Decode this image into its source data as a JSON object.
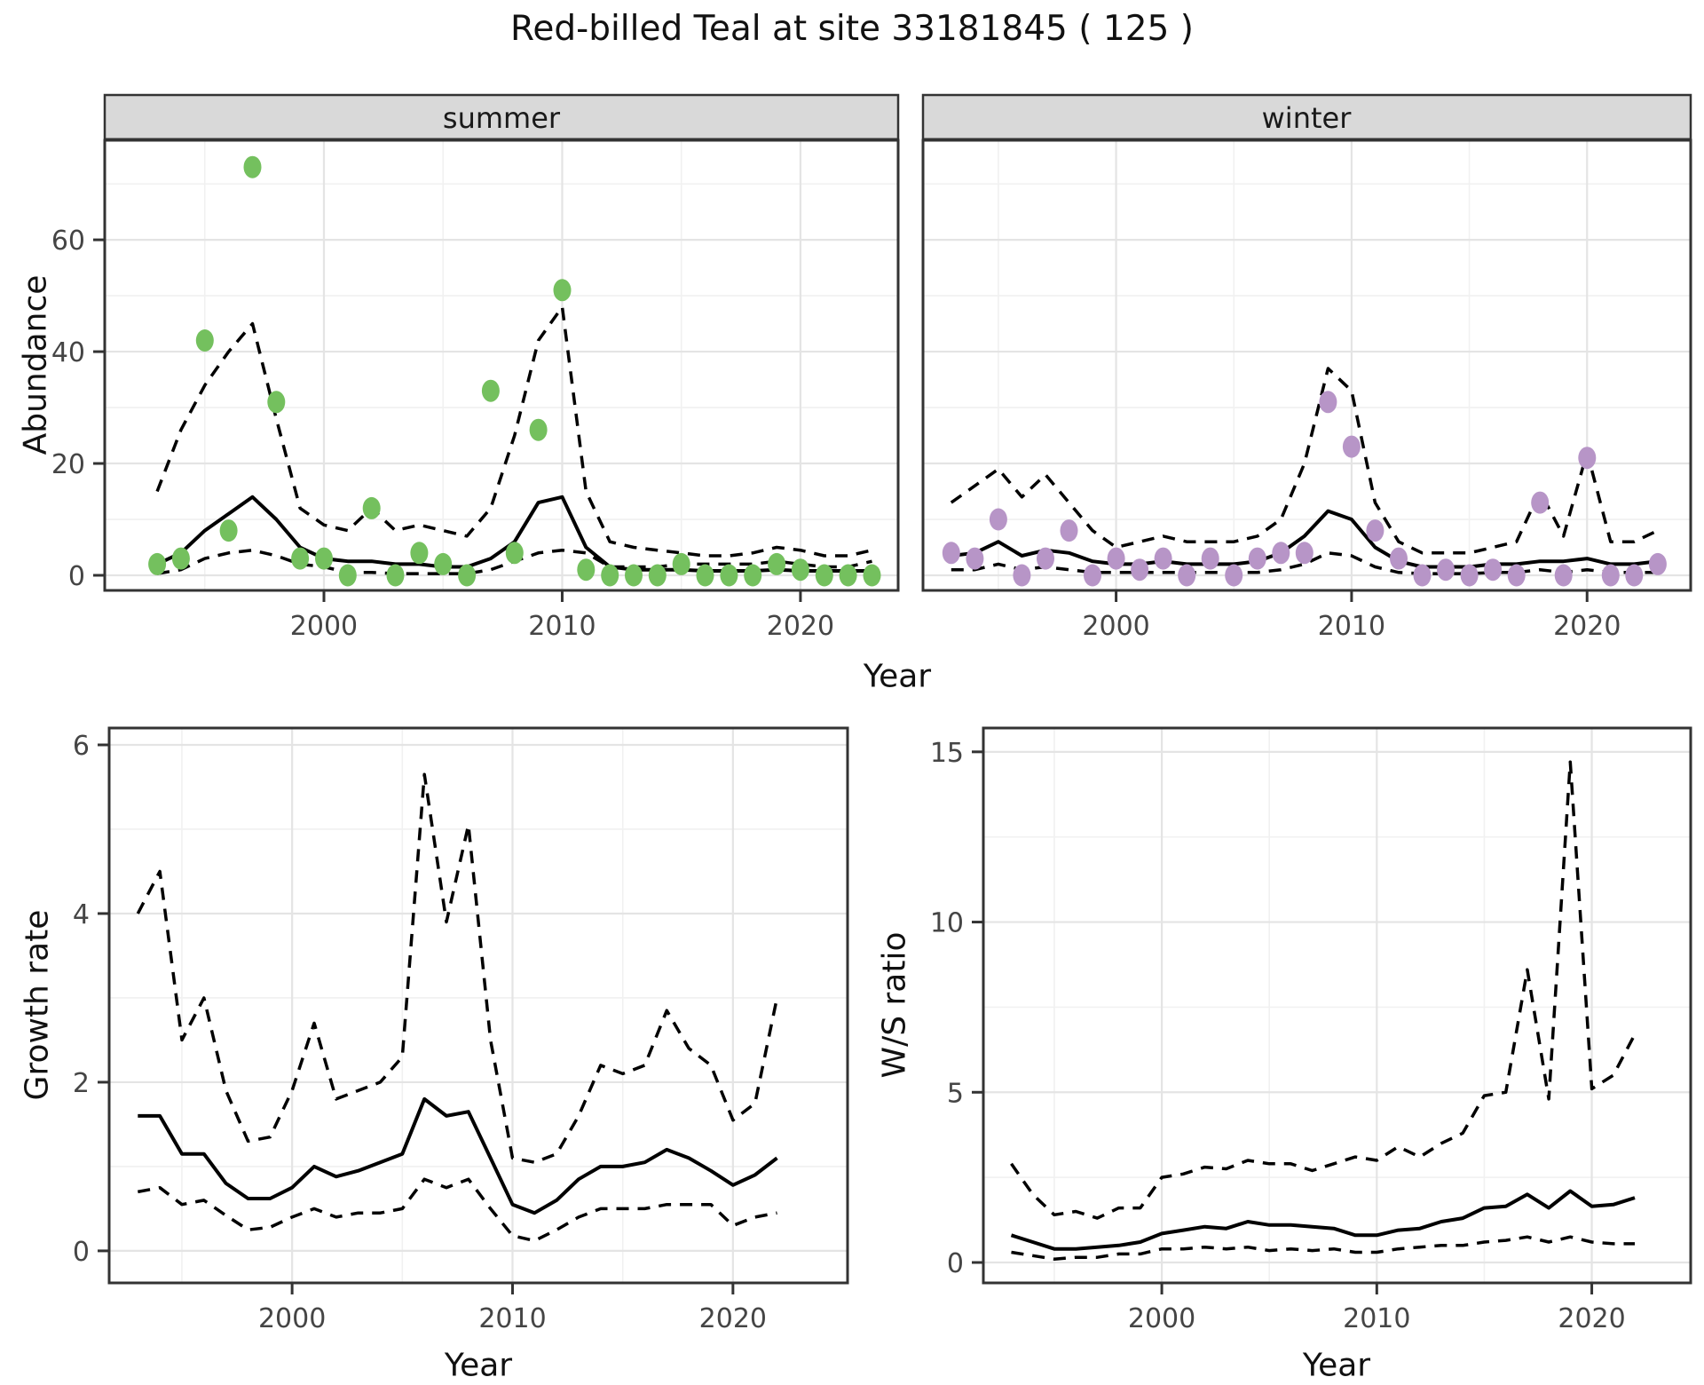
{
  "title": "Red-billed Teal at site 33181845 ( 125 )",
  "facets": {
    "summer": "summer",
    "winter": "winter"
  },
  "axes": {
    "abundance": "Abundance",
    "year": "Year",
    "growth_rate": "Growth rate",
    "ws_ratio": "W/S ratio"
  },
  "colors": {
    "summer_point": "#74c05e",
    "winter_point": "#b795c7",
    "line": "#000000",
    "grid_major": "#e4e4e4",
    "grid_minor": "#f1f1f1",
    "panel_border": "#333333",
    "strip_bg": "#d9d9d9",
    "strip_divider": "#333333",
    "tick_text": "#454545",
    "panel_bg": "#ffffff"
  },
  "chart_data": [
    {
      "id": "summer",
      "type": "scatter",
      "title": "summer",
      "xlabel": "Year",
      "ylabel": "Abundance",
      "grid": true,
      "legend_position": "none",
      "xlim": [
        1990.8,
        2024.1
      ],
      "ylim": [
        -2.7,
        77.8
      ],
      "xticks": [
        2000,
        2010,
        2020
      ],
      "yticks": [
        0,
        20,
        40,
        60
      ],
      "xminor": [
        1995,
        2005,
        2015
      ],
      "yminor": [
        10,
        30,
        50,
        70
      ],
      "show_y_axis": true,
      "point_color_key": "summer_point",
      "x": [
        1993,
        1994,
        1995,
        1996,
        1997,
        1998,
        1999,
        2000,
        2001,
        2002,
        2003,
        2004,
        2005,
        2006,
        2007,
        2008,
        2009,
        2010,
        2011,
        2012,
        2013,
        2014,
        2015,
        2016,
        2017,
        2018,
        2019,
        2020,
        2021,
        2022,
        2023
      ],
      "points": [
        2,
        3,
        42,
        8,
        73,
        31,
        3,
        3,
        0,
        12,
        0,
        4,
        2,
        0,
        33,
        4,
        26,
        51,
        1,
        0,
        0,
        0,
        2,
        0,
        0,
        0,
        2,
        1,
        0,
        0,
        0
      ],
      "series": [
        {
          "name": "mean",
          "style": "solid",
          "values": [
            2,
            4,
            8,
            11,
            14,
            10,
            5,
            3,
            2.5,
            2.5,
            2,
            2,
            1.5,
            1.5,
            3,
            6,
            13,
            14,
            5,
            1.5,
            1,
            1,
            1,
            0.8,
            0.8,
            0.8,
            1,
            0.8,
            0.8,
            0.8,
            0.8
          ]
        },
        {
          "name": "upper_ci",
          "style": "dashed",
          "values": [
            15,
            26,
            34,
            40,
            45,
            28,
            12,
            9,
            8,
            12,
            8,
            9,
            8,
            7,
            12,
            25,
            42,
            48,
            15,
            6,
            5,
            4.5,
            4,
            3.5,
            3.5,
            4,
            5,
            4.5,
            3.5,
            3.5,
            4.5
          ]
        },
        {
          "name": "lower_ci",
          "style": "dashed",
          "values": [
            0.3,
            1,
            3,
            4,
            4.5,
            3.5,
            2,
            1.5,
            0.5,
            0.5,
            0.3,
            0.3,
            0.3,
            0.3,
            1,
            2.5,
            4,
            4.5,
            4,
            1.5,
            1.5,
            1.5,
            2,
            2,
            2,
            2,
            2.5,
            2,
            1.5,
            1.5,
            2.5
          ]
        }
      ]
    },
    {
      "id": "winter",
      "type": "scatter",
      "title": "winter",
      "xlabel": "Year",
      "ylabel": "Abundance",
      "grid": true,
      "legend_position": "none",
      "xlim": [
        1991.8,
        2024.4
      ],
      "ylim": [
        -2.7,
        77.8
      ],
      "xticks": [
        2000,
        2010,
        2020
      ],
      "yticks": [
        0,
        20,
        40,
        60
      ],
      "xminor": [
        1995,
        2005,
        2015
      ],
      "yminor": [
        10,
        30,
        50,
        70
      ],
      "show_y_axis": false,
      "point_color_key": "winter_point",
      "x": [
        1993,
        1994,
        1995,
        1996,
        1997,
        1998,
        1999,
        2000,
        2001,
        2002,
        2003,
        2004,
        2005,
        2006,
        2007,
        2008,
        2009,
        2010,
        2011,
        2012,
        2013,
        2014,
        2015,
        2016,
        2017,
        2018,
        2019,
        2020,
        2021,
        2022,
        2023
      ],
      "points": [
        4,
        3,
        10,
        0,
        3,
        8,
        0,
        3,
        1,
        3,
        0,
        3,
        0,
        3,
        4,
        4,
        31,
        23,
        8,
        3,
        0,
        1,
        0,
        1,
        0,
        13,
        0,
        21,
        0,
        0,
        2
      ],
      "series": [
        {
          "name": "mean",
          "style": "solid",
          "values": [
            3.5,
            4,
            6,
            3.5,
            4.5,
            4,
            2.5,
            2,
            2,
            2.5,
            2,
            2,
            2,
            2.5,
            4,
            7,
            11.5,
            10,
            5,
            2.5,
            1.5,
            1.5,
            1.5,
            2,
            2,
            2.5,
            2.5,
            3,
            2,
            2,
            2.5
          ]
        },
        {
          "name": "upper_ci",
          "style": "dashed",
          "values": [
            13,
            16,
            19,
            14,
            18,
            13,
            8,
            5,
            6,
            7,
            6,
            6,
            6,
            7,
            10,
            20,
            37,
            33,
            13,
            6,
            4,
            4,
            4,
            5,
            6,
            15,
            7,
            22,
            6,
            6,
            8
          ]
        },
        {
          "name": "lower_ci",
          "style": "dashed",
          "values": [
            1,
            1,
            2,
            1,
            1.5,
            1,
            0.5,
            0.5,
            0.5,
            0.5,
            0.5,
            0.5,
            0.5,
            0.5,
            1,
            2,
            4,
            3.5,
            1.5,
            0.5,
            0.3,
            0.3,
            0.3,
            0.5,
            0.5,
            1,
            0.5,
            1,
            0.5,
            0.5,
            0.5
          ]
        }
      ]
    },
    {
      "id": "growth",
      "type": "line",
      "title": "",
      "xlabel": "Year",
      "ylabel": "Growth rate",
      "grid": true,
      "legend_position": "none",
      "xlim": [
        1991.7,
        2025.2
      ],
      "ylim": [
        -0.38,
        6.2
      ],
      "xticks": [
        2000,
        2010,
        2020
      ],
      "yticks": [
        0,
        2,
        4,
        6
      ],
      "xminor": [
        1995,
        2005,
        2015
      ],
      "yminor": [
        1,
        3,
        5
      ],
      "show_y_axis": true,
      "x": [
        1993,
        1994,
        1995,
        1996,
        1997,
        1998,
        1999,
        2000,
        2001,
        2002,
        2003,
        2004,
        2005,
        2006,
        2007,
        2008,
        2009,
        2010,
        2011,
        2012,
        2013,
        2014,
        2015,
        2016,
        2017,
        2018,
        2019,
        2020,
        2021,
        2022
      ],
      "series": [
        {
          "name": "mean",
          "style": "solid",
          "values": [
            1.6,
            1.6,
            1.15,
            1.15,
            0.8,
            0.62,
            0.62,
            0.75,
            1.0,
            0.88,
            0.95,
            1.05,
            1.15,
            1.8,
            1.6,
            1.65,
            1.1,
            0.55,
            0.45,
            0.6,
            0.85,
            1.0,
            1.0,
            1.05,
            1.2,
            1.1,
            0.95,
            0.78,
            0.9,
            1.1
          ]
        },
        {
          "name": "upper_ci",
          "style": "dashed",
          "values": [
            4.0,
            4.5,
            2.5,
            3.0,
            1.9,
            1.3,
            1.35,
            1.9,
            2.7,
            1.8,
            1.9,
            2.0,
            2.3,
            5.65,
            3.9,
            5.05,
            2.5,
            1.1,
            1.05,
            1.15,
            1.6,
            2.2,
            2.1,
            2.2,
            2.85,
            2.4,
            2.2,
            1.55,
            1.75,
            3.0
          ]
        },
        {
          "name": "lower_ci",
          "style": "dashed",
          "values": [
            0.7,
            0.75,
            0.55,
            0.6,
            0.42,
            0.25,
            0.28,
            0.4,
            0.5,
            0.4,
            0.45,
            0.45,
            0.5,
            0.85,
            0.75,
            0.85,
            0.5,
            0.18,
            0.12,
            0.25,
            0.4,
            0.5,
            0.5,
            0.5,
            0.55,
            0.55,
            0.55,
            0.3,
            0.4,
            0.45
          ]
        }
      ]
    },
    {
      "id": "ws",
      "type": "line",
      "title": "",
      "xlabel": "Year",
      "ylabel": "W/S ratio",
      "grid": true,
      "legend_position": "none",
      "xlim": [
        1991.7,
        2024.6
      ],
      "ylim": [
        -0.6,
        15.7
      ],
      "xticks": [
        2000,
        2010,
        2020
      ],
      "yticks": [
        0,
        5,
        10,
        15
      ],
      "xminor": [
        1995,
        2005,
        2015
      ],
      "yminor": [
        2.5,
        7.5,
        12.5
      ],
      "show_y_axis": true,
      "x": [
        1993,
        1994,
        1995,
        1996,
        1997,
        1998,
        1999,
        2000,
        2001,
        2002,
        2003,
        2004,
        2005,
        2006,
        2007,
        2008,
        2009,
        2010,
        2011,
        2012,
        2013,
        2014,
        2015,
        2016,
        2017,
        2018,
        2019,
        2020,
        2021,
        2022
      ],
      "series": [
        {
          "name": "mean",
          "style": "solid",
          "values": [
            0.8,
            0.6,
            0.4,
            0.4,
            0.45,
            0.5,
            0.6,
            0.85,
            0.95,
            1.05,
            1.0,
            1.2,
            1.1,
            1.1,
            1.05,
            1.0,
            0.8,
            0.8,
            0.95,
            1.0,
            1.2,
            1.3,
            1.6,
            1.65,
            2.0,
            1.6,
            2.1,
            1.65,
            1.7,
            1.9
          ]
        },
        {
          "name": "upper_ci",
          "style": "dashed",
          "values": [
            2.9,
            2.0,
            1.4,
            1.5,
            1.3,
            1.6,
            1.6,
            2.5,
            2.6,
            2.8,
            2.75,
            3.0,
            2.9,
            2.9,
            2.7,
            2.9,
            3.1,
            3.0,
            3.4,
            3.1,
            3.5,
            3.8,
            4.9,
            5.0,
            8.6,
            4.8,
            14.7,
            5.1,
            5.5,
            6.7
          ]
        },
        {
          "name": "lower_ci",
          "style": "dashed",
          "values": [
            0.3,
            0.2,
            0.1,
            0.15,
            0.15,
            0.25,
            0.25,
            0.4,
            0.4,
            0.45,
            0.4,
            0.45,
            0.35,
            0.4,
            0.35,
            0.4,
            0.3,
            0.3,
            0.4,
            0.45,
            0.5,
            0.5,
            0.6,
            0.65,
            0.75,
            0.6,
            0.75,
            0.6,
            0.55,
            0.55
          ]
        }
      ]
    }
  ]
}
